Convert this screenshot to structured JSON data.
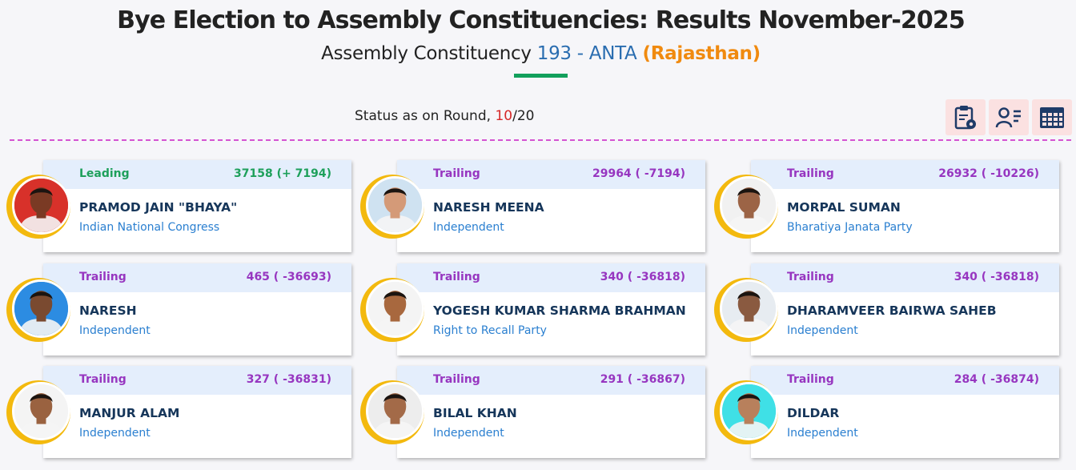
{
  "header": {
    "title": "Bye Election to Assembly Constituencies: Results November-2025",
    "subtitle_prefix": "Assembly Constituency",
    "constituency": "193 - ANTA",
    "state": "(Rajasthan)"
  },
  "status": {
    "prefix": "Status as on Round,",
    "current_round": "10",
    "separator": "/",
    "total_rounds": "20"
  },
  "toolbar": [
    {
      "icon": "clipboard-icon"
    },
    {
      "icon": "candidate-list-icon"
    },
    {
      "icon": "grid-table-icon"
    }
  ],
  "candidates": [
    {
      "status": "Leading",
      "votes": "37158 (+ 7194)",
      "name": "PRAMOD JAIN \"BHAYA\"",
      "party": "Indian National Congress",
      "photo_bg": "#d8312a",
      "skin": "#7a3a24"
    },
    {
      "status": "Trailing",
      "votes": "29964 ( -7194)",
      "name": "NARESH MEENA",
      "party": "Independent",
      "photo_bg": "#cfe2f1",
      "skin": "#d49a78"
    },
    {
      "status": "Trailing",
      "votes": "26932 ( -10226)",
      "name": "MORPAL SUMAN",
      "party": "Bharatiya Janata Party",
      "photo_bg": "#f1f1f1",
      "skin": "#9c6446"
    },
    {
      "status": "Trailing",
      "votes": "465 ( -36693)",
      "name": "NARESH",
      "party": "Independent",
      "photo_bg": "#2c8ce2",
      "skin": "#7a4a30"
    },
    {
      "status": "Trailing",
      "votes": "340 ( -36818)",
      "name": "YOGESH KUMAR SHARMA BRAHMAN",
      "party": "Right to Recall Party",
      "photo_bg": "#f4f4f4",
      "skin": "#a8683e"
    },
    {
      "status": "Trailing",
      "votes": "340 ( -36818)",
      "name": "DHARAMVEER BAIRWA SAHEB",
      "party": "Independent",
      "photo_bg": "#e7ecf1",
      "skin": "#8a5a40"
    },
    {
      "status": "Trailing",
      "votes": "327 ( -36831)",
      "name": "MANJUR ALAM",
      "party": "Independent",
      "photo_bg": "#f4f4f4",
      "skin": "#9a6240"
    },
    {
      "status": "Trailing",
      "votes": "291 ( -36867)",
      "name": "BILAL KHAN",
      "party": "Independent",
      "photo_bg": "#ededed",
      "skin": "#a36a48"
    },
    {
      "status": "Trailing",
      "votes": "284 ( -36874)",
      "name": "DILDAR",
      "party": "Independent",
      "photo_bg": "#3fe0e6",
      "skin": "#b8805c"
    }
  ]
}
